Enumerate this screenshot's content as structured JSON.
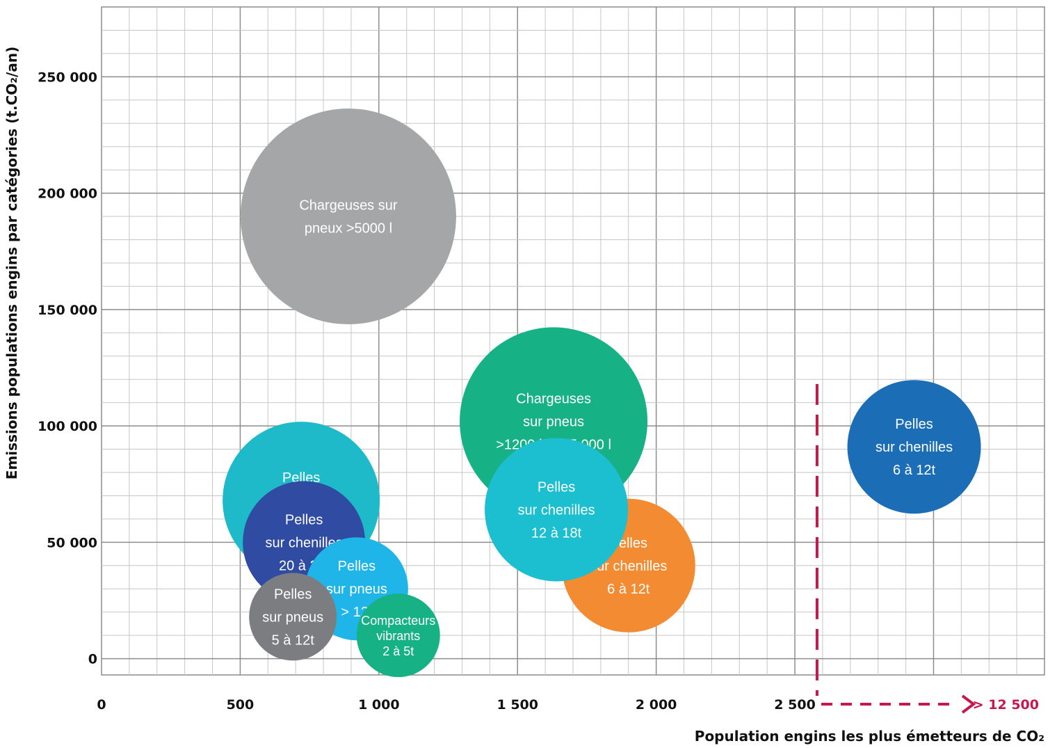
{
  "chart_data": {
    "type": "scatter",
    "subtype": "bubble",
    "xlabel": "Population engins les plus émetteurs de CO₂",
    "ylabel": "Emissions populations engins par catégories (t.CO₂/an)",
    "x_ticks": [
      "0",
      "500",
      "1 000",
      "1 500",
      "2 000",
      "2 500"
    ],
    "y_ticks": [
      "0",
      "50 000",
      "100 000",
      "150 000",
      "200 000",
      "250 000"
    ],
    "xlim": [
      0,
      3400
    ],
    "ylim": [
      -7000,
      280000
    ],
    "grid": true,
    "axis_break": {
      "x": 2580,
      "label": "> 12 500",
      "color": "#c8174b"
    },
    "bubbles": [
      {
        "label": [
          "Chargeuses sur",
          "pneux >5000 l"
        ],
        "x": 890,
        "y": 190000,
        "r": 155,
        "color": "#a5a6a8"
      },
      {
        "label": [
          "Chargeuses",
          "sur pneus",
          ">1200 l et <5 000 l"
        ],
        "x": 1630,
        "y": 102000,
        "r": 135,
        "color": "#16b184"
      },
      {
        "label": [
          "Pelles",
          "sur chenilles",
          "6 à 12t"
        ],
        "x": 2930,
        "y": 91000,
        "r": 96,
        "color": "#1b6db6"
      },
      {
        "label": [
          "Pelles",
          "sur chenilles",
          "25 à 45t"
        ],
        "x": 720,
        "y": 68000,
        "r": 113,
        "color": "#1fbac9"
      },
      {
        "label": [
          "Pelles",
          "sur chenilles",
          "6 à 12t"
        ],
        "x": 1900,
        "y": 40000,
        "r": 96,
        "color": "#f28b31"
      },
      {
        "label": [
          "Pelles",
          "sur chenilles",
          "12 à 18t"
        ],
        "x": 1640,
        "y": 64000,
        "r": 103,
        "color": "#1bbfd0"
      },
      {
        "label": [
          "Pelles",
          "sur chenilles",
          "20 à 25t"
        ],
        "x": 730,
        "y": 50000,
        "r": 88,
        "color": "#2f4ca2"
      },
      {
        "label": [
          "Pelles",
          "sur pneus",
          "> 12t"
        ],
        "x": 920,
        "y": 30000,
        "r": 74,
        "color": "#1fb5e9"
      },
      {
        "label": [
          "Pelles",
          "sur pneus",
          "5 à 12t"
        ],
        "x": 690,
        "y": 18000,
        "r": 63,
        "color": "#7b7d80"
      },
      {
        "label": [
          "Compacteurs",
          "vibrants",
          "2 à 5t"
        ],
        "x": 1070,
        "y": 10000,
        "r": 60,
        "color": "#16b184",
        "small": true
      }
    ]
  }
}
